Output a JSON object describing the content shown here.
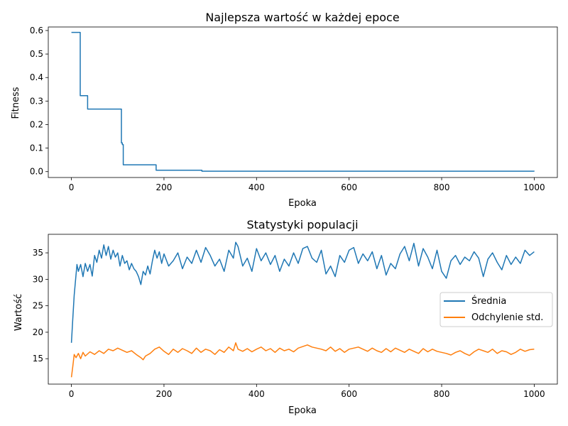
{
  "chart_data": [
    {
      "type": "line",
      "title": "Najlepsza wartość w każdej epoce",
      "xlabel": "Epoka",
      "ylabel": "Fitness",
      "xlim": [
        -50,
        1050
      ],
      "ylim": [
        -0.025,
        0.615
      ],
      "xticks": [
        0,
        200,
        400,
        600,
        800,
        1000
      ],
      "yticks": [
        0.0,
        0.1,
        0.2,
        0.3,
        0.4,
        0.5,
        0.6
      ],
      "grid": false,
      "series": [
        {
          "color": "#1f77b4",
          "step": true,
          "x": [
            0,
            19,
            35,
            108,
            110,
            112,
            183,
            282,
            1000
          ],
          "y": [
            0.592,
            0.323,
            0.266,
            0.122,
            0.115,
            0.029,
            0.006,
            0.002,
            0.001
          ]
        }
      ]
    },
    {
      "type": "line",
      "title": "Statystyki populacji",
      "xlabel": "Epoka",
      "ylabel": "Wartość",
      "xlim": [
        -50,
        1050
      ],
      "ylim": [
        10.2,
        38.5
      ],
      "xticks": [
        0,
        200,
        400,
        600,
        800,
        1000
      ],
      "yticks": [
        15,
        20,
        25,
        30,
        35
      ],
      "grid": false,
      "legend": "center-right",
      "series": [
        {
          "name": "Średnia",
          "color": "#1f77b4",
          "x": [
            0,
            3,
            6,
            9,
            12,
            15,
            20,
            25,
            30,
            35,
            40,
            45,
            50,
            55,
            60,
            65,
            70,
            75,
            80,
            85,
            90,
            95,
            100,
            105,
            110,
            115,
            120,
            125,
            130,
            135,
            140,
            145,
            150,
            155,
            160,
            165,
            170,
            175,
            180,
            185,
            190,
            195,
            200,
            210,
            220,
            230,
            240,
            250,
            260,
            270,
            280,
            290,
            300,
            310,
            320,
            330,
            340,
            350,
            355,
            360,
            370,
            380,
            390,
            400,
            410,
            420,
            430,
            440,
            450,
            460,
            470,
            480,
            490,
            500,
            510,
            520,
            530,
            540,
            550,
            560,
            570,
            580,
            590,
            600,
            610,
            620,
            630,
            640,
            650,
            660,
            670,
            680,
            690,
            700,
            710,
            720,
            730,
            740,
            750,
            760,
            770,
            780,
            790,
            800,
            810,
            820,
            830,
            840,
            850,
            860,
            870,
            880,
            890,
            900,
            910,
            920,
            930,
            940,
            950,
            960,
            970,
            980,
            990,
            1000
          ],
          "y": [
            18.0,
            22.5,
            27.0,
            30.0,
            32.8,
            31.5,
            32.8,
            30.5,
            33.0,
            31.5,
            32.8,
            30.6,
            34.5,
            33.2,
            35.5,
            34.0,
            36.5,
            34.5,
            36.2,
            33.8,
            35.5,
            34.2,
            35.0,
            32.5,
            34.5,
            33.0,
            33.5,
            31.8,
            33.0,
            32.0,
            31.5,
            30.5,
            29.0,
            31.5,
            30.8,
            32.5,
            31.0,
            33.5,
            35.5,
            34.0,
            35.2,
            33.0,
            34.8,
            32.5,
            33.5,
            35.0,
            32.0,
            34.2,
            33.0,
            35.5,
            33.2,
            36.0,
            34.5,
            32.5,
            33.8,
            31.5,
            35.5,
            34.0,
            37.0,
            36.2,
            32.5,
            34.0,
            31.5,
            35.8,
            33.5,
            35.0,
            32.8,
            34.5,
            31.5,
            33.8,
            32.5,
            35.0,
            33.0,
            35.8,
            36.2,
            34.0,
            33.2,
            35.5,
            31.0,
            32.5,
            30.5,
            34.5,
            33.2,
            35.5,
            36.0,
            33.0,
            34.8,
            33.5,
            35.2,
            32.0,
            34.5,
            30.8,
            33.0,
            32.0,
            34.8,
            36.2,
            33.5,
            36.8,
            32.5,
            35.8,
            34.2,
            32.0,
            35.5,
            31.5,
            30.2,
            33.5,
            34.5,
            32.8,
            34.2,
            33.5,
            35.2,
            34.0,
            30.5,
            33.8,
            35.0,
            33.2,
            31.8,
            34.5,
            32.8,
            34.2,
            33.0,
            35.5,
            34.5,
            35.2
          ]
        },
        {
          "name": "Odchylenie std.",
          "color": "#ff7f0e",
          "x": [
            0,
            3,
            6,
            10,
            15,
            20,
            25,
            30,
            40,
            50,
            60,
            70,
            80,
            90,
            100,
            110,
            120,
            130,
            140,
            150,
            155,
            160,
            170,
            180,
            190,
            200,
            210,
            220,
            230,
            240,
            250,
            260,
            270,
            280,
            290,
            300,
            310,
            320,
            330,
            340,
            350,
            355,
            360,
            370,
            380,
            390,
            400,
            410,
            420,
            430,
            440,
            450,
            460,
            470,
            480,
            490,
            500,
            510,
            520,
            530,
            540,
            550,
            560,
            570,
            580,
            590,
            600,
            610,
            620,
            630,
            640,
            650,
            660,
            670,
            680,
            690,
            700,
            710,
            720,
            730,
            740,
            750,
            760,
            770,
            780,
            790,
            800,
            810,
            820,
            830,
            840,
            850,
            860,
            870,
            880,
            890,
            900,
            910,
            920,
            930,
            940,
            950,
            960,
            970,
            980,
            990,
            1000
          ],
          "y": [
            11.5,
            13.5,
            15.8,
            15.2,
            16.0,
            15.0,
            16.2,
            15.5,
            16.3,
            15.8,
            16.5,
            16.0,
            16.8,
            16.5,
            17.0,
            16.6,
            16.2,
            16.5,
            15.8,
            15.2,
            14.8,
            15.5,
            16.0,
            16.8,
            17.2,
            16.4,
            15.8,
            16.8,
            16.2,
            16.9,
            16.5,
            16.0,
            17.0,
            16.2,
            16.8,
            16.5,
            15.8,
            16.7,
            16.2,
            17.2,
            16.5,
            18.0,
            16.8,
            16.4,
            16.9,
            16.3,
            16.8,
            17.2,
            16.5,
            16.9,
            16.2,
            17.0,
            16.5,
            16.8,
            16.3,
            17.0,
            17.3,
            17.6,
            17.2,
            17.0,
            16.8,
            16.5,
            17.2,
            16.4,
            16.9,
            16.2,
            16.8,
            17.0,
            17.2,
            16.8,
            16.4,
            17.0,
            16.5,
            16.2,
            16.9,
            16.3,
            17.0,
            16.6,
            16.2,
            16.8,
            16.4,
            16.0,
            16.9,
            16.3,
            16.8,
            16.4,
            16.2,
            16.0,
            15.7,
            16.2,
            16.5,
            16.0,
            15.6,
            16.3,
            16.8,
            16.5,
            16.2,
            16.8,
            16.0,
            16.5,
            16.3,
            15.8,
            16.2,
            16.8,
            16.4,
            16.7,
            16.8
          ]
        }
      ]
    }
  ]
}
